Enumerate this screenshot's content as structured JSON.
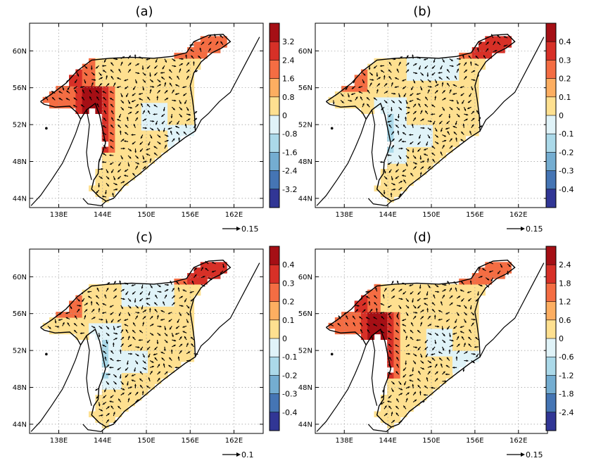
{
  "panels": [
    {
      "title": "(a)",
      "ref_vector": "0.15",
      "colorbar": [
        "3.2",
        "2.4",
        "1.6",
        "0.8",
        "0",
        "-0.8",
        "-1.6",
        "-2.4",
        "-3.2"
      ],
      "lat_ticks": [
        "60N",
        "56N",
        "52N",
        "48N",
        "44N"
      ],
      "lon_ticks": [
        "138E",
        "144E",
        "150E",
        "156E",
        "162E"
      ],
      "pattern": "strong-west-positive"
    },
    {
      "title": "(b)",
      "ref_vector": "0.15",
      "colorbar": [
        "0.4",
        "0.3",
        "0.2",
        "0.1",
        "0",
        "-0.1",
        "-0.2",
        "-0.3",
        "-0.4"
      ],
      "lat_ticks": [
        "60N",
        "56N",
        "52N",
        "48N",
        "44N"
      ],
      "lon_ticks": [
        "138E",
        "144E",
        "150E",
        "156E",
        "162E"
      ],
      "pattern": "mixed-west-negative"
    },
    {
      "title": "(c)",
      "ref_vector": "0.1",
      "colorbar": [
        "0.4",
        "0.3",
        "0.2",
        "0.1",
        "0",
        "-0.1",
        "-0.2",
        "-0.3",
        "-0.4"
      ],
      "lat_ticks": [
        "60N",
        "56N",
        "52N",
        "48N",
        "44N"
      ],
      "lon_ticks": [
        "138E",
        "144E",
        "150E",
        "156E",
        "162E"
      ],
      "pattern": "mixed-west-negative"
    },
    {
      "title": "(d)",
      "ref_vector": "0.15",
      "colorbar": [
        "2.4",
        "1.8",
        "1.2",
        "0.6",
        "0",
        "-0.6",
        "-1.2",
        "-1.8",
        "-2.4"
      ],
      "lat_ticks": [
        "60N",
        "56N",
        "52N",
        "48N",
        "44N"
      ],
      "lon_ticks": [
        "138E",
        "144E",
        "150E",
        "156E",
        "162E"
      ],
      "pattern": "strong-west-positive"
    }
  ],
  "colors": {
    "scale": [
      "#b2182b",
      "#d6604d",
      "#f4a582",
      "#fdd68a",
      "#e0f3f8",
      "#abd9e9",
      "#74add1",
      "#4575b4",
      "#313695"
    ],
    "scale_top_to_bottom": [
      "#a50f15",
      "#d73027",
      "#f46d43",
      "#fdae61",
      "#fee090",
      "#e0f3f8",
      "#abd9e9",
      "#74add1",
      "#4575b4",
      "#313695"
    ],
    "fill_default": "#fed98e",
    "coast": "#000000",
    "grid": "#9a9a9a"
  }
}
